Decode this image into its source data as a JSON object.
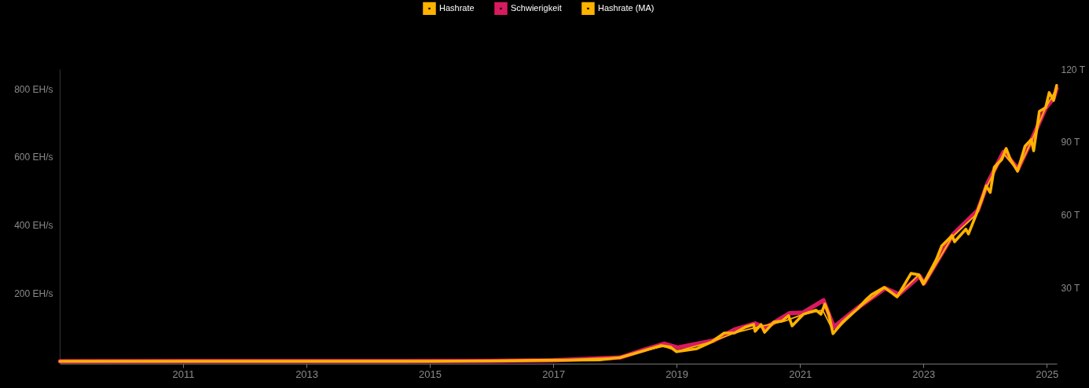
{
  "chart_data": {
    "type": "line",
    "xlim": [
      "2009-01-01",
      "2025-03-01"
    ],
    "xticks": [
      "2011",
      "2013",
      "2015",
      "2017",
      "2019",
      "2021",
      "2023",
      "2025"
    ],
    "ylim": [
      -7,
      858
    ],
    "yticks": [
      {
        "value": 200,
        "label": "200 EH/s"
      },
      {
        "value": 400,
        "label": "400 EH/s"
      },
      {
        "value": 600,
        "label": "600 EH/s"
      },
      {
        "value": 800,
        "label": "800 EH/s"
      }
    ],
    "y2lim": [
      -1,
      120
    ],
    "y2ticks": [
      {
        "value": 30,
        "label": "30 T"
      },
      {
        "value": 60,
        "label": "60 T"
      },
      {
        "value": 90,
        "label": "90 T"
      },
      {
        "value": 120,
        "label": "120 T"
      }
    ],
    "grid": false,
    "legend": "top",
    "line_style": "solid",
    "series": [
      {
        "name": "Hashrate",
        "color": "#ffb300",
        "x": [
          "2009-01-03",
          "2012-01-01",
          "2015-01-01",
          "2016-01-01",
          "2017-01-01",
          "2017-10-01",
          "2018-02-01",
          "2018-06-15",
          "2018-10-01",
          "2018-11-25",
          "2019-01-01",
          "2019-05-01",
          "2019-08-01",
          "2019-10-10",
          "2019-12-10",
          "2020-02-15",
          "2020-04-01",
          "2020-04-10",
          "2020-05-15",
          "2020-06-05",
          "2020-07-30",
          "2020-09-15",
          "2020-10-25",
          "2020-11-15",
          "2021-01-20",
          "2021-04-05",
          "2021-05-05",
          "2021-05-28",
          "2021-06-20",
          "2021-07-15",
          "2021-09-10",
          "2021-12-10",
          "2022-01-25",
          "2022-03-01",
          "2022-05-15",
          "2022-07-30",
          "2022-10-20",
          "2022-12-05",
          "2023-01-01",
          "2023-03-20",
          "2023-04-20",
          "2023-06-20",
          "2023-07-05",
          "2023-09-10",
          "2023-09-25",
          "2023-11-10",
          "2023-12-15",
          "2024-01-08",
          "2024-02-01",
          "2024-02-25",
          "2024-04-10",
          "2024-05-05",
          "2024-05-30",
          "2024-07-12",
          "2024-08-25",
          "2024-10-01",
          "2024-10-15",
          "2024-11-18",
          "2024-12-25",
          "2025-01-15",
          "2025-02-10",
          "2025-02-28"
        ],
        "values": [
          0,
          0,
          0,
          1,
          3,
          4,
          11,
          30,
          46,
          42,
          28,
          37,
          58,
          83,
          83,
          101,
          108,
          88,
          108,
          85,
          115,
          118,
          134,
          104,
          138,
          150,
          138,
          168,
          138,
          81,
          115,
          155,
          180,
          196,
          217,
          189,
          258,
          254,
          226,
          300,
          339,
          369,
          351,
          388,
          374,
          431,
          478,
          515,
          496,
          570,
          593,
          625,
          593,
          558,
          632,
          651,
          618,
          734,
          745,
          789,
          766,
          810
        ]
      },
      {
        "name": "Schwierigkeit",
        "color": "#d81b60",
        "axis": "y2",
        "x": [
          "2009-01-03",
          "2016-01-01",
          "2017-01-01",
          "2018-02-01",
          "2018-06-15",
          "2018-10-20",
          "2019-01-10",
          "2019-08-10",
          "2019-12-10",
          "2020-04-10",
          "2020-06-10",
          "2020-10-30",
          "2021-01-20",
          "2021-05-20",
          "2021-07-20",
          "2021-12-10",
          "2022-05-20",
          "2022-08-10",
          "2022-12-10",
          "2023-01-05",
          "2023-06-25",
          "2023-11-20",
          "2024-01-15",
          "2024-04-20",
          "2024-07-15",
          "2024-10-10",
          "2024-12-25",
          "2025-02-10",
          "2025-02-28"
        ],
        "values": [
          0,
          0.1,
          0.4,
          1.5,
          4.5,
          7.2,
          5.6,
          8.5,
          13,
          15.5,
          13.7,
          19.7,
          20,
          25,
          14,
          22,
          30,
          27.5,
          35,
          32,
          52,
          62,
          73,
          86,
          79,
          92,
          104,
          108,
          112
        ]
      },
      {
        "name": "Hashrate (MA)",
        "color": "#ffb300",
        "x": [
          "2009-01-03",
          "2016-01-01",
          "2017-01-01",
          "2018-02-01",
          "2018-06-15",
          "2018-10-15",
          "2019-01-10",
          "2019-08-01",
          "2019-12-10",
          "2020-04-20",
          "2020-10-01",
          "2021-01-20",
          "2021-05-15",
          "2021-07-20",
          "2021-12-10",
          "2022-05-15",
          "2022-08-01",
          "2022-12-05",
          "2023-01-10",
          "2023-06-20",
          "2023-11-10",
          "2024-01-08",
          "2024-04-20",
          "2024-07-12",
          "2024-10-01",
          "2024-12-25",
          "2025-02-28"
        ],
        "values": [
          0,
          1,
          3,
          11,
          30,
          44,
          30,
          58,
          83,
          100,
          118,
          138,
          150,
          85,
          155,
          215,
          192,
          254,
          230,
          365,
          431,
          510,
          610,
          560,
          645,
          745,
          800
        ]
      }
    ]
  }
}
